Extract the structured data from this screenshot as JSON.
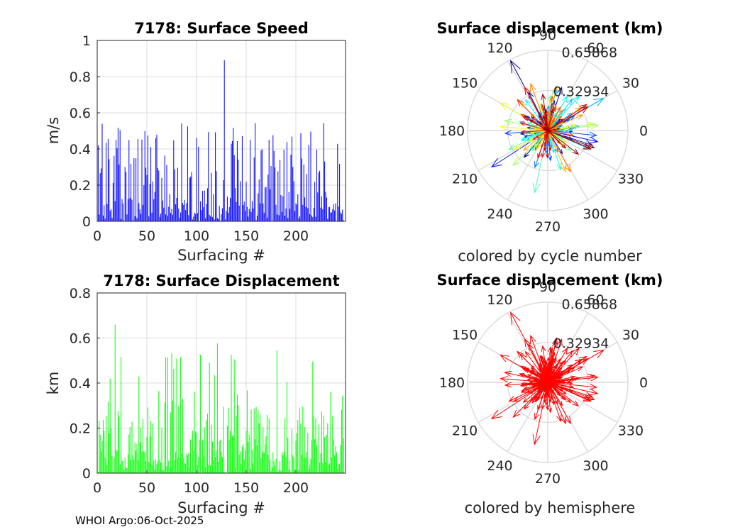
{
  "footer": "WHOI Argo:06-Oct-2025",
  "colors": {
    "speed": "#0000ff",
    "displacement": "#00ff00",
    "hemisphere": "#ff0000",
    "grid": "#dcdcdc",
    "axis": "#262626"
  },
  "chart_data": [
    {
      "type": "bar",
      "title": "7178: Surface Speed",
      "xlabel": "Surfacing #",
      "ylabel": "m/s",
      "xlim": [
        0,
        250
      ],
      "ylim": [
        0,
        1
      ],
      "xticks": [
        0,
        50,
        100,
        150,
        200
      ],
      "yticks": [
        0,
        0.2,
        0.4,
        0.6,
        0.8,
        1
      ],
      "ytick_labels": [
        "0",
        "0.2",
        "0.4",
        "0.6",
        "0.8",
        "1"
      ],
      "n": 248,
      "max_value": 0.89,
      "max_index": 127,
      "mean_value": 0.17,
      "typical_peak_range": [
        0.35,
        0.55
      ],
      "grid": true
    },
    {
      "type": "bar",
      "title": "7178: Surface Displacement",
      "xlabel": "Surfacing #",
      "ylabel": "km",
      "xlim": [
        0,
        250
      ],
      "ylim": [
        0,
        0.8
      ],
      "xticks": [
        0,
        50,
        100,
        150,
        200
      ],
      "yticks": [
        0,
        0.2,
        0.4,
        0.6,
        0.8
      ],
      "ytick_labels": [
        "0",
        "0.2",
        "0.4",
        "0.6",
        "0.8"
      ],
      "n": 248,
      "max_value": 0.66,
      "max_index": 17,
      "mean_value": 0.2,
      "typical_peak_range": [
        0.3,
        0.58
      ],
      "grid": true
    },
    {
      "type": "compass",
      "title": "Surface displacement (km)",
      "subtitle": "colored by cycle number",
      "angle_labels": [
        "0",
        "30",
        "60",
        "90",
        "120",
        "150",
        "180",
        "210",
        "240",
        "270",
        "300",
        "330"
      ],
      "r_max": 0.65868,
      "r_ticks": [
        0.32934,
        0.65868
      ],
      "r_tick_labels": [
        "0.32934",
        "0.65868"
      ],
      "n_arrows": 248,
      "color_mode": "jet colormap by cycle number",
      "notable_arrows": [
        {
          "angle_deg": 118,
          "r": 0.65
        },
        {
          "angle_deg": 213,
          "r": 0.55
        },
        {
          "angle_deg": 30,
          "r": 0.53
        },
        {
          "angle_deg": 258,
          "r": 0.52
        },
        {
          "angle_deg": 150,
          "r": 0.45
        }
      ]
    },
    {
      "type": "compass",
      "title": "Surface displacement (km)",
      "subtitle": "colored by hemisphere",
      "angle_labels": [
        "0",
        "30",
        "60",
        "90",
        "120",
        "150",
        "180",
        "210",
        "240",
        "270",
        "300",
        "330"
      ],
      "r_max": 0.65868,
      "r_ticks": [
        0.32934,
        0.65868
      ],
      "r_tick_labels": [
        "0.32934",
        "0.65868"
      ],
      "n_arrows": 248,
      "color_mode": "single color (red)",
      "notable_arrows": [
        {
          "angle_deg": 118,
          "r": 0.65
        },
        {
          "angle_deg": 213,
          "r": 0.55
        },
        {
          "angle_deg": 30,
          "r": 0.53
        },
        {
          "angle_deg": 258,
          "r": 0.52
        },
        {
          "angle_deg": 150,
          "r": 0.45
        }
      ]
    }
  ]
}
